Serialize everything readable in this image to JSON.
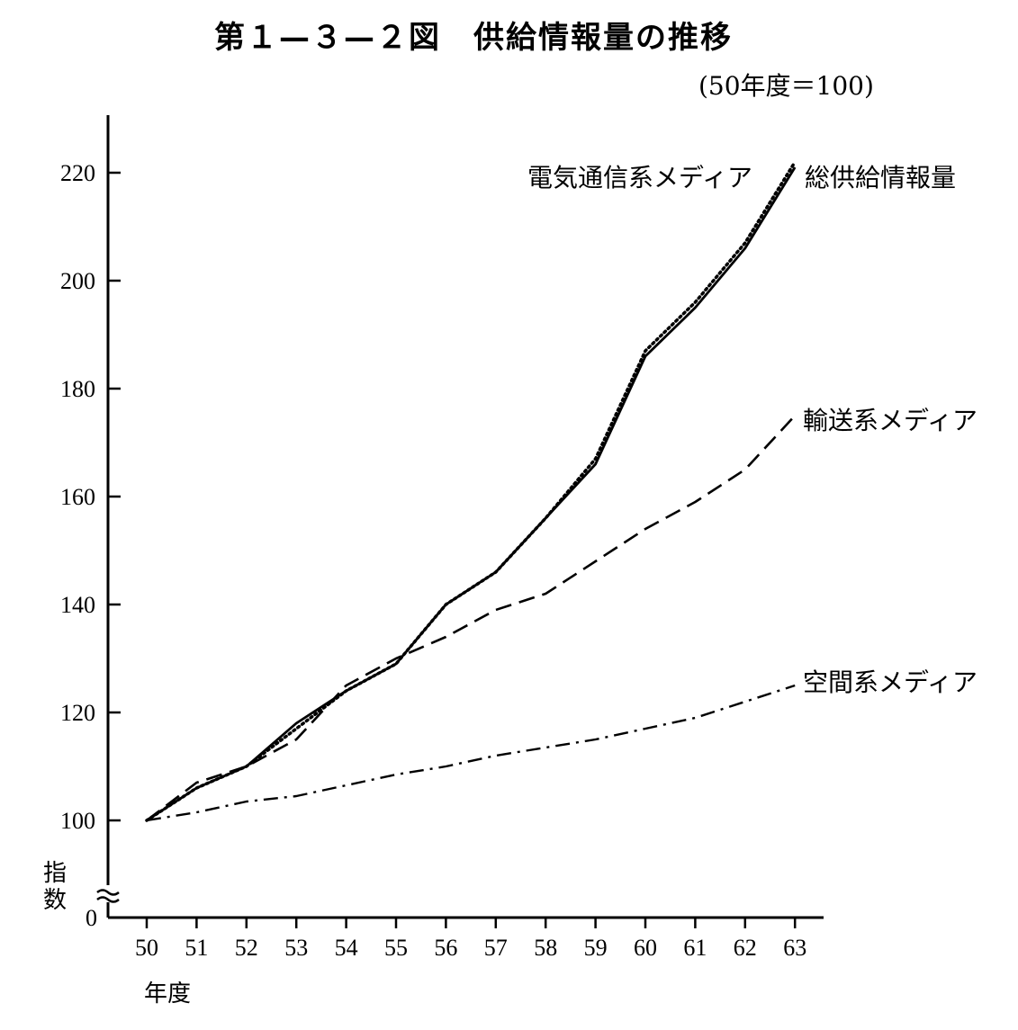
{
  "title": "第１—３—２図　供給情報量の推移",
  "subtitle": "(50年度＝100)",
  "chart_data": {
    "type": "line",
    "title": "第１—３—２図　供給情報量の推移",
    "subtitle": "(50年度＝100)",
    "xlabel": "年度",
    "ylabel": "指数",
    "x": [
      "50",
      "51",
      "52",
      "53",
      "54",
      "55",
      "56",
      "57",
      "58",
      "59",
      "60",
      "61",
      "62",
      "63"
    ],
    "yticks": [
      "0",
      "100",
      "120",
      "140",
      "160",
      "180",
      "200",
      "220"
    ],
    "ylim": [
      100,
      230
    ],
    "axis_break": true,
    "grid": false,
    "series": [
      {
        "name": "総供給情報量",
        "style": "dotted",
        "values": [
          100,
          106,
          110,
          117,
          124,
          129,
          140,
          146,
          156,
          167,
          187,
          196,
          207,
          222
        ]
      },
      {
        "name": "電気通信系メディア",
        "style": "solid",
        "values": [
          100,
          106,
          110,
          118,
          124,
          129,
          140,
          146,
          156,
          166,
          186,
          195,
          206,
          221
        ]
      },
      {
        "name": "輸送系メディア",
        "style": "dashed",
        "values": [
          100,
          107,
          110,
          115,
          125,
          130,
          134,
          139,
          142,
          148,
          154,
          159,
          165,
          175
        ]
      },
      {
        "name": "空間系メディア",
        "style": "dashdot",
        "values": [
          100,
          101.5,
          103.5,
          104.5,
          106.5,
          108.5,
          110,
          112,
          113.5,
          115,
          117,
          119,
          122,
          125
        ]
      }
    ]
  }
}
